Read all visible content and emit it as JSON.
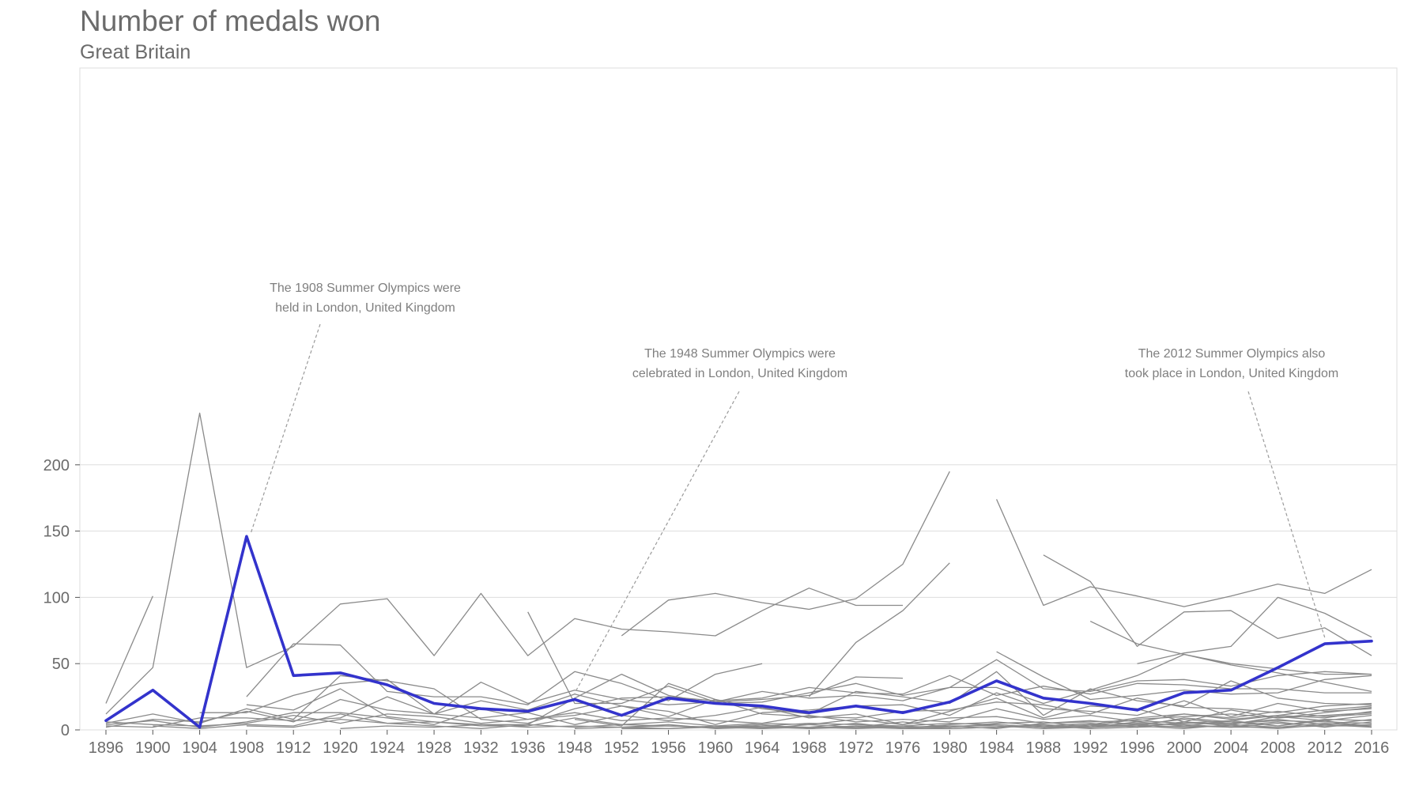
{
  "chart_data": {
    "type": "line",
    "title": "Number of medals won",
    "subtitle": "Great Britain",
    "xlabel": "",
    "ylabel": "",
    "x": [
      1896,
      1900,
      1904,
      1908,
      1912,
      1920,
      1924,
      1928,
      1932,
      1936,
      1948,
      1952,
      1956,
      1960,
      1964,
      1968,
      1972,
      1976,
      1980,
      1984,
      1988,
      1992,
      1996,
      2000,
      2004,
      2008,
      2012,
      2016
    ],
    "x_tick_labels": [
      "1896",
      "1900",
      "1904",
      "1908",
      "1912",
      "1920",
      "1924",
      "1928",
      "1932",
      "1936",
      "1948",
      "1952",
      "1956",
      "1960",
      "1964",
      "1968",
      "1972",
      "1976",
      "1980",
      "1984",
      "1988",
      "1992",
      "1996",
      "2000",
      "2004",
      "2008",
      "2012",
      "2016"
    ],
    "ylim": [
      0,
      245
    ],
    "y_ticks": [
      0,
      50,
      100,
      150,
      200
    ],
    "y_tick_labels": [
      "0",
      "50",
      "100",
      "150",
      "200"
    ],
    "grid": "horizontal",
    "legend": "none",
    "colors": {
      "highlight": "#3333cc",
      "others": "#8a8a8a",
      "grid": "#dddddd",
      "text": "#6b6b6b",
      "annotation": "#7f7f7f"
    },
    "highlight": {
      "values": [
        7,
        30,
        2,
        146,
        41,
        43,
        34,
        20,
        16,
        14,
        23,
        11,
        24,
        20,
        18,
        13,
        18,
        13,
        21,
        37,
        24,
        20,
        15,
        28,
        30,
        47,
        65,
        67
      ]
    },
    "other_series": [
      {
        "values": [
          20,
          101,
          null,
          null,
          null,
          null,
          null,
          null,
          null,
          null,
          null,
          null,
          null,
          null,
          null,
          null,
          null,
          null,
          null,
          null,
          null,
          null,
          null,
          null,
          null,
          null,
          null,
          null
        ]
      },
      {
        "values": [
          12,
          47,
          239,
          47,
          63,
          95,
          99,
          56,
          103,
          56,
          84,
          76,
          74,
          71,
          90,
          107,
          94,
          94,
          null,
          null,
          null,
          null,
          null,
          null,
          null,
          null,
          null,
          null
        ]
      },
      {
        "values": [
          null,
          null,
          null,
          25,
          65,
          64,
          29,
          25,
          25,
          19,
          44,
          35,
          22,
          42,
          50,
          null,
          null,
          null,
          null,
          null,
          null,
          null,
          null,
          null,
          null,
          null,
          null,
          null
        ]
      },
      {
        "values": [
          null,
          null,
          null,
          null,
          null,
          null,
          null,
          null,
          null,
          null,
          null,
          71,
          98,
          103,
          96,
          91,
          99,
          125,
          195,
          null,
          null,
          null,
          null,
          null,
          null,
          null,
          null,
          null
        ]
      },
      {
        "values": [
          null,
          null,
          null,
          null,
          null,
          null,
          null,
          null,
          null,
          null,
          null,
          null,
          null,
          null,
          null,
          25,
          66,
          90,
          126,
          null,
          null,
          null,
          null,
          null,
          null,
          null,
          null,
          null
        ]
      },
      {
        "values": [
          null,
          null,
          null,
          null,
          null,
          null,
          null,
          null,
          null,
          null,
          null,
          null,
          null,
          null,
          null,
          null,
          null,
          null,
          null,
          174,
          94,
          108,
          101,
          93,
          101,
          110,
          103,
          121
        ]
      },
      {
        "values": [
          null,
          null,
          null,
          null,
          null,
          null,
          null,
          null,
          null,
          null,
          null,
          null,
          null,
          null,
          null,
          null,
          null,
          null,
          null,
          null,
          132,
          112,
          63,
          89,
          90,
          69,
          77,
          56
        ]
      },
      {
        "values": [
          null,
          null,
          null,
          null,
          null,
          null,
          null,
          null,
          null,
          null,
          null,
          null,
          null,
          null,
          null,
          null,
          null,
          null,
          null,
          null,
          null,
          82,
          65,
          57,
          49,
          43,
          36,
          29
        ]
      },
      {
        "values": [
          null,
          null,
          null,
          null,
          null,
          null,
          null,
          null,
          null,
          null,
          null,
          null,
          null,
          null,
          null,
          null,
          null,
          null,
          null,
          null,
          null,
          null,
          50,
          58,
          63,
          100,
          88,
          70
        ]
      },
      {
        "values": [
          null,
          null,
          null,
          null,
          null,
          null,
          null,
          null,
          null,
          89,
          20,
          20,
          33,
          21,
          23,
          26,
          40,
          39,
          null,
          null,
          null,
          null,
          null,
          null,
          null,
          null,
          null,
          null
        ]
      },
      {
        "values": [
          null,
          null,
          13,
          13,
          26,
          35,
          38,
          12,
          36,
          20,
          30,
          23,
          19,
          21,
          29,
          24,
          26,
          22,
          32,
          32,
          20,
          30,
          41,
          57,
          50,
          46,
          42,
          42
        ]
      },
      {
        "values": [
          null,
          null,
          null,
          null,
          null,
          null,
          null,
          null,
          null,
          null,
          null,
          null,
          null,
          null,
          null,
          null,
          null,
          null,
          null,
          59,
          40,
          23,
          26,
          30,
          27,
          28,
          38,
          41
        ]
      },
      {
        "values": [
          null,
          null,
          null,
          19,
          15,
          31,
          10,
          6,
          4,
          4,
          24,
          42,
          26,
          20,
          21,
          28,
          35,
          26,
          32,
          53,
          31,
          29,
          37,
          38,
          33,
          41,
          44,
          42
        ]
      },
      {
        "values": [
          5,
          12,
          5,
          16,
          8,
          41,
          37,
          31,
          8,
          5,
          16,
          24,
          25,
          22,
          24,
          32,
          28,
          27,
          41,
          26,
          33,
          27,
          35,
          34,
          31,
          31,
          28,
          28
        ]
      },
      {
        "values": [
          null,
          null,
          null,
          null,
          null,
          null,
          null,
          null,
          null,
          null,
          8,
          3,
          35,
          23,
          16,
          12,
          29,
          25,
          20,
          44,
          11,
          31,
          22,
          18,
          37,
          24,
          20,
          19
        ]
      },
      {
        "values": [
          2,
          8,
          6,
          14,
          6,
          23,
          15,
          12,
          22,
          15,
          27,
          18,
          10,
          23,
          12,
          10,
          9,
          14,
          15,
          21,
          19,
          12,
          24,
          17,
          16,
          13,
          18,
          20
        ]
      },
      {
        "values": [
          4,
          7,
          2,
          6,
          13,
          13,
          9,
          4,
          16,
          8,
          11,
          18,
          14,
          4,
          13,
          15,
          18,
          19,
          11,
          28,
          16,
          14,
          11,
          22,
          10,
          20,
          14,
          16
        ]
      },
      {
        "values": [
          3,
          2,
          9,
          9,
          7,
          9,
          25,
          12,
          9,
          13,
          4,
          11,
          7,
          11,
          17,
          9,
          12,
          4,
          14,
          24,
          9,
          18,
          16,
          6,
          15,
          9,
          13,
          17
        ]
      },
      {
        "values": [
          6,
          4,
          3,
          5,
          11,
          5,
          12,
          10,
          5,
          8,
          13,
          7,
          9,
          7,
          5,
          11,
          6,
          8,
          6,
          16,
          8,
          11,
          6,
          12,
          8,
          11,
          9,
          14
        ]
      },
      {
        "values": [
          null,
          3,
          1,
          4,
          3,
          12,
          5,
          6,
          3,
          3,
          9,
          4,
          6,
          3,
          5,
          4,
          8,
          4,
          9,
          10,
          5,
          6,
          7,
          5,
          5,
          7,
          6,
          5
        ]
      },
      {
        "values": [
          null,
          null,
          null,
          3,
          2,
          8,
          5,
          3,
          1,
          4,
          2,
          4,
          3,
          2,
          3,
          5,
          4,
          3,
          5,
          4,
          2,
          4,
          3,
          9,
          6,
          3,
          8,
          7
        ]
      },
      {
        "values": [
          null,
          null,
          null,
          null,
          null,
          1,
          3,
          2,
          4,
          2,
          3,
          2,
          1,
          3,
          2,
          2,
          1,
          2,
          3,
          3,
          1,
          2,
          4,
          2,
          3,
          1,
          4,
          2
        ]
      },
      {
        "values": [
          null,
          null,
          null,
          null,
          null,
          null,
          null,
          null,
          null,
          null,
          1,
          2,
          3,
          2,
          1,
          2,
          2,
          1,
          1,
          2,
          3,
          1,
          2,
          3,
          2,
          2,
          3,
          3
        ]
      },
      {
        "values": [
          null,
          null,
          null,
          null,
          null,
          null,
          null,
          null,
          null,
          null,
          null,
          null,
          null,
          1,
          2,
          1,
          3,
          2,
          2,
          4,
          2,
          3,
          5,
          4,
          2,
          5,
          3,
          4
        ]
      },
      {
        "values": [
          null,
          null,
          null,
          null,
          null,
          null,
          null,
          null,
          null,
          null,
          null,
          1,
          1,
          2,
          4,
          1,
          2,
          3,
          1,
          2,
          4,
          2,
          3,
          1,
          4,
          2,
          5,
          3
        ]
      },
      {
        "values": [
          null,
          null,
          null,
          null,
          null,
          null,
          null,
          null,
          null,
          null,
          null,
          2,
          4,
          1,
          3,
          2,
          5,
          1,
          4,
          6,
          3,
          5,
          2,
          6,
          3,
          6,
          2,
          6
        ]
      },
      {
        "values": [
          null,
          null,
          null,
          null,
          null,
          null,
          null,
          null,
          null,
          null,
          null,
          null,
          null,
          3,
          1,
          4,
          2,
          6,
          2,
          5,
          6,
          2,
          6,
          3,
          7,
          3,
          7,
          2
        ]
      },
      {
        "values": [
          null,
          null,
          null,
          null,
          null,
          null,
          null,
          null,
          null,
          null,
          null,
          null,
          null,
          null,
          null,
          1,
          3,
          1,
          3,
          1,
          5,
          7,
          4,
          8,
          5,
          8,
          4,
          8
        ]
      },
      {
        "values": [
          null,
          null,
          null,
          null,
          null,
          null,
          null,
          null,
          null,
          null,
          null,
          null,
          null,
          null,
          null,
          null,
          null,
          null,
          null,
          null,
          2,
          3,
          8,
          10,
          12,
          9,
          11,
          13
        ]
      },
      {
        "values": [
          null,
          null,
          null,
          null,
          null,
          null,
          null,
          null,
          null,
          null,
          null,
          null,
          null,
          null,
          null,
          null,
          null,
          null,
          null,
          null,
          1,
          4,
          9,
          12,
          9,
          14,
          10,
          12
        ]
      },
      {
        "values": [
          null,
          null,
          null,
          null,
          null,
          null,
          null,
          null,
          null,
          null,
          null,
          null,
          null,
          null,
          null,
          null,
          null,
          null,
          null,
          null,
          null,
          null,
          3,
          5,
          7,
          11,
          15,
          18
        ]
      },
      {
        "values": [
          null,
          null,
          null,
          null,
          null,
          null,
          null,
          null,
          null,
          null,
          null,
          null,
          null,
          null,
          null,
          null,
          null,
          null,
          null,
          null,
          null,
          null,
          2,
          6,
          4,
          10,
          7,
          11
        ]
      }
    ],
    "annotations": [
      {
        "lines": [
          "The 1908 Summer Olympics were",
          "held in London, United Kingdom"
        ],
        "year": 1908,
        "value": 146
      },
      {
        "lines": [
          "The 1948 Summer Olympics were",
          "celebrated in London, United Kingdom"
        ],
        "year": 1948,
        "value": 23
      },
      {
        "lines": [
          "The 2012 Summer Olympics also",
          "took place in London, United Kingdom"
        ],
        "year": 2012,
        "value": 65
      }
    ]
  }
}
